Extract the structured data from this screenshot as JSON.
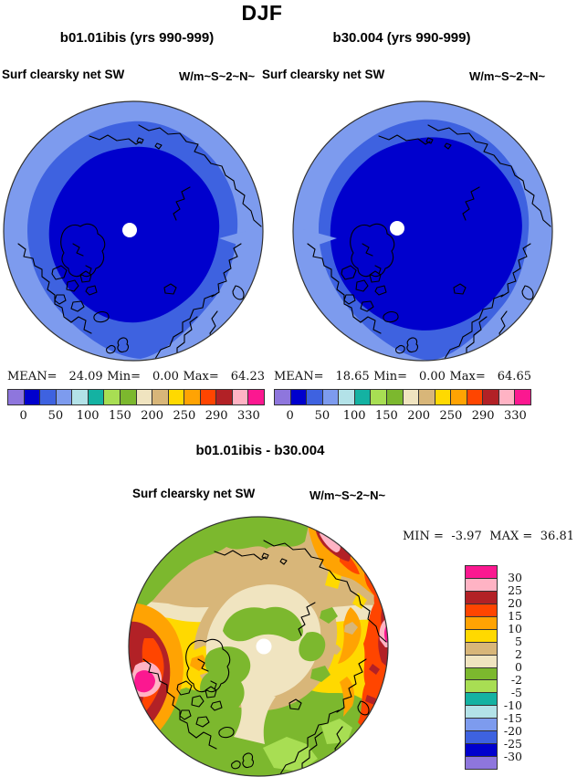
{
  "title": "DJF",
  "panels": {
    "left": {
      "subtitle": "b01.01ibis (yrs 990-999)",
      "field_label": "Surf clearsky net SW",
      "units_label": "W/m~S~2~N~",
      "stats": {
        "mean_label": "MEAN=",
        "mean": "24.09",
        "min_label": "Min=",
        "min": "0.00",
        "max_label": "Max=",
        "max": "64.23"
      }
    },
    "right": {
      "subtitle": "b30.004 (yrs 990-999)",
      "field_label": "Surf clearsky net SW",
      "units_label": "W/m~S~2~N~",
      "stats": {
        "mean_label": "MEAN=",
        "mean": "18.65",
        "min_label": "Min=",
        "min": "0.00",
        "max_label": "Max=",
        "max": "64.65"
      }
    },
    "diff": {
      "subtitle": "b01.01ibis - b30.004",
      "field_label": "Surf clearsky net SW",
      "units_label": "W/m~S~2~N~",
      "stats": {
        "min_label": "MIN =",
        "min": "-3.97",
        "max_label": "MAX =",
        "max": "36.81"
      }
    }
  },
  "colorbar": {
    "orientation": "horizontal",
    "colors": [
      "#8e76dd",
      "#0000cd",
      "#3e62e0",
      "#7d9bee",
      "#b3e2e8",
      "#14b2a2",
      "#a8de53",
      "#7cb82e",
      "#f0e4c0",
      "#d8b679",
      "#ffd900",
      "#ffa303",
      "#ff4500",
      "#b22126",
      "#ffb3c4",
      "#fb1890"
    ],
    "tick_labels": [
      "0",
      "50",
      "100",
      "150",
      "200",
      "250",
      "290",
      "330"
    ]
  },
  "diff_colorbar": {
    "orientation": "vertical",
    "colors": [
      "#fb1890",
      "#ffb3c4",
      "#b22126",
      "#ff4500",
      "#ffa303",
      "#ffd900",
      "#d8b679",
      "#f0e4c0",
      "#7cb82e",
      "#a8de53",
      "#14b2a2",
      "#b3e2e8",
      "#7d9bee",
      "#3e62e0",
      "#0000cd",
      "#8e76dd"
    ],
    "tick_labels": [
      "30",
      "25",
      "20",
      "15",
      "10",
      "5",
      "2",
      "0",
      "-2",
      "-5",
      "-10",
      "-15",
      "-20",
      "-25",
      "-30"
    ]
  },
  "map_colors": {
    "low_inner": "#0000cd",
    "mid_ring": "#3e62e0",
    "outer_ring": "#7d9bee",
    "pole_dot": "#ffffff",
    "coastline": "#000000",
    "outline": "#333333"
  },
  "chart_data": [
    {
      "type": "heatmap",
      "subtype": "north-polar-stereographic-filled-contour-map",
      "title": "b01.01ibis (yrs 990-999)",
      "field": "Surf clearsky net SW",
      "units": "W/m~S~2~N~",
      "stats": {
        "mean": 24.09,
        "min": 0.0,
        "max": 64.23
      },
      "colorbar_ticks": [
        0,
        50,
        100,
        150,
        200,
        250,
        290,
        330
      ],
      "pattern": "dark blue (0-50 W/m2) over central Arctic, royal blue ring (50-100), light blue outer ring (~100-150) toward map edge"
    },
    {
      "type": "heatmap",
      "subtype": "north-polar-stereographic-filled-contour-map",
      "title": "b30.004 (yrs 990-999)",
      "field": "Surf clearsky net SW",
      "units": "W/m~S~2~N~",
      "stats": {
        "mean": 18.65,
        "min": 0.0,
        "max": 64.65
      },
      "colorbar_ticks": [
        0,
        50,
        100,
        150,
        200,
        250,
        290,
        330
      ],
      "pattern": "same banding as left panel but dark-blue (0-50) region extends farther toward the map edge"
    },
    {
      "type": "heatmap",
      "subtype": "north-polar-stereographic-filled-contour-difference-map",
      "title": "b01.01ibis - b30.004",
      "field": "Surf clearsky net SW",
      "units": "W/m~S~2~N~",
      "stats": {
        "min": -3.97,
        "max": 36.81
      },
      "colorbar_ticks": [
        30,
        25,
        20,
        15,
        10,
        5,
        2,
        0,
        -2,
        -5,
        -10,
        -15,
        -20,
        -25,
        -30
      ],
      "pattern": "near-zero (cream) around pole with small negative (green) patches; +2-5 (tan) ring; +5-10 (yellow) and +10-15 (orange) mid ring; +15-30 (red/dark red) with >30 (pink/magenta) spots at left and right edges and top-right; slightly negative (green, to -5) caps at top and bottom edges"
    }
  ]
}
